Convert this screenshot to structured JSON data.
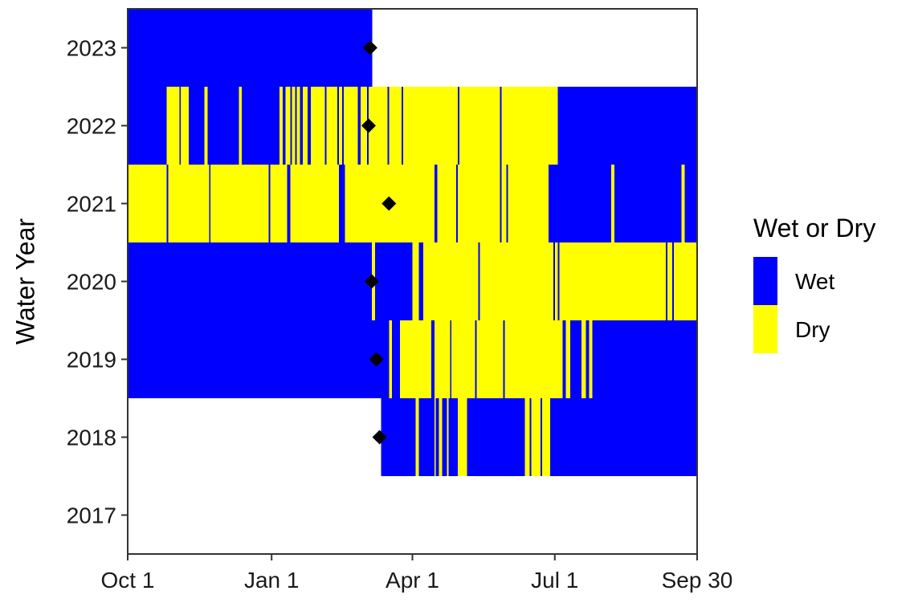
{
  "chart_data": {
    "type": "heatmap",
    "title": "",
    "xlabel": "",
    "ylabel": "Water Year",
    "x_ticks": [
      "Oct 1",
      "Jan 1",
      "Apr 1",
      "Jul 1",
      "Sep 30"
    ],
    "x_tick_days": [
      0,
      92,
      182,
      273,
      364
    ],
    "x_range_days": [
      0,
      364
    ],
    "y_ticks": [
      "2017",
      "2018",
      "2019",
      "2020",
      "2021",
      "2022",
      "2023"
    ],
    "legend": {
      "title": "Wet or Dry",
      "placement": "right",
      "items": [
        {
          "label": "Wet",
          "color": "#0000ff"
        },
        {
          "label": "Dry",
          "color": "#ffff00"
        }
      ]
    },
    "colors": {
      "Wet": "#0000ff",
      "Dry": "#ffff00",
      "marker": "#000000"
    },
    "grid": false,
    "rows": [
      {
        "year": "2018",
        "segments": [
          {
            "start": 162,
            "end": 184,
            "state": "Wet"
          },
          {
            "start": 184,
            "end": 186,
            "state": "Dry"
          },
          {
            "start": 186,
            "end": 196,
            "state": "Wet"
          },
          {
            "start": 196,
            "end": 197,
            "state": "Dry"
          },
          {
            "start": 197,
            "end": 199,
            "state": "Wet"
          },
          {
            "start": 199,
            "end": 201,
            "state": "Dry"
          },
          {
            "start": 201,
            "end": 204,
            "state": "Wet"
          },
          {
            "start": 204,
            "end": 205,
            "state": "Dry"
          },
          {
            "start": 205,
            "end": 211,
            "state": "Wet"
          },
          {
            "start": 211,
            "end": 217,
            "state": "Dry"
          },
          {
            "start": 217,
            "end": 254,
            "state": "Wet"
          },
          {
            "start": 254,
            "end": 257,
            "state": "Dry"
          },
          {
            "start": 257,
            "end": 258,
            "state": "Wet"
          },
          {
            "start": 258,
            "end": 264,
            "state": "Dry"
          },
          {
            "start": 264,
            "end": 265,
            "state": "Wet"
          },
          {
            "start": 265,
            "end": 270,
            "state": "Dry"
          },
          {
            "start": 270,
            "end": 364,
            "state": "Wet"
          }
        ],
        "marker_day": 161
      },
      {
        "year": "2019",
        "segments": [
          {
            "start": 0,
            "end": 167,
            "state": "Wet"
          },
          {
            "start": 167,
            "end": 169,
            "state": "Dry"
          },
          {
            "start": 169,
            "end": 174,
            "state": "Wet"
          },
          {
            "start": 174,
            "end": 194,
            "state": "Dry"
          },
          {
            "start": 194,
            "end": 196,
            "state": "Wet"
          },
          {
            "start": 196,
            "end": 206,
            "state": "Dry"
          },
          {
            "start": 206,
            "end": 207,
            "state": "Wet"
          },
          {
            "start": 207,
            "end": 222,
            "state": "Dry"
          },
          {
            "start": 222,
            "end": 223,
            "state": "Wet"
          },
          {
            "start": 223,
            "end": 240,
            "state": "Dry"
          },
          {
            "start": 240,
            "end": 241,
            "state": "Wet"
          },
          {
            "start": 241,
            "end": 278,
            "state": "Dry"
          },
          {
            "start": 278,
            "end": 280,
            "state": "Wet"
          },
          {
            "start": 280,
            "end": 283,
            "state": "Dry"
          },
          {
            "start": 283,
            "end": 290,
            "state": "Wet"
          },
          {
            "start": 290,
            "end": 293,
            "state": "Dry"
          },
          {
            "start": 293,
            "end": 295,
            "state": "Wet"
          },
          {
            "start": 295,
            "end": 297,
            "state": "Dry"
          },
          {
            "start": 297,
            "end": 364,
            "state": "Wet"
          }
        ],
        "marker_day": 159
      },
      {
        "year": "2020",
        "segments": [
          {
            "start": 0,
            "end": 156,
            "state": "Wet"
          },
          {
            "start": 156,
            "end": 158,
            "state": "Dry"
          },
          {
            "start": 158,
            "end": 182,
            "state": "Wet"
          },
          {
            "start": 182,
            "end": 186,
            "state": "Dry"
          },
          {
            "start": 186,
            "end": 189,
            "state": "Wet"
          },
          {
            "start": 189,
            "end": 224,
            "state": "Dry"
          },
          {
            "start": 224,
            "end": 225,
            "state": "Wet"
          },
          {
            "start": 225,
            "end": 272,
            "state": "Dry"
          },
          {
            "start": 272,
            "end": 273,
            "state": "Wet"
          },
          {
            "start": 273,
            "end": 275,
            "state": "Dry"
          },
          {
            "start": 275,
            "end": 276,
            "state": "Wet"
          },
          {
            "start": 276,
            "end": 344,
            "state": "Dry"
          },
          {
            "start": 344,
            "end": 345,
            "state": "Wet"
          },
          {
            "start": 345,
            "end": 348,
            "state": "Dry"
          },
          {
            "start": 348,
            "end": 349,
            "state": "Wet"
          },
          {
            "start": 349,
            "end": 364,
            "state": "Dry"
          }
        ],
        "marker_day": 156
      },
      {
        "year": "2021",
        "segments": [
          {
            "start": 0,
            "end": 25,
            "state": "Dry"
          },
          {
            "start": 25,
            "end": 26,
            "state": "Wet"
          },
          {
            "start": 26,
            "end": 52,
            "state": "Dry"
          },
          {
            "start": 52,
            "end": 53,
            "state": "Wet"
          },
          {
            "start": 53,
            "end": 90,
            "state": "Dry"
          },
          {
            "start": 90,
            "end": 91,
            "state": "Wet"
          },
          {
            "start": 91,
            "end": 102,
            "state": "Dry"
          },
          {
            "start": 102,
            "end": 104,
            "state": "Wet"
          },
          {
            "start": 104,
            "end": 135,
            "state": "Dry"
          },
          {
            "start": 135,
            "end": 139,
            "state": "Wet"
          },
          {
            "start": 139,
            "end": 196,
            "state": "Dry"
          },
          {
            "start": 196,
            "end": 198,
            "state": "Wet"
          },
          {
            "start": 198,
            "end": 210,
            "state": "Dry"
          },
          {
            "start": 210,
            "end": 211,
            "state": "Wet"
          },
          {
            "start": 211,
            "end": 238,
            "state": "Dry"
          },
          {
            "start": 238,
            "end": 239,
            "state": "Wet"
          },
          {
            "start": 239,
            "end": 242,
            "state": "Dry"
          },
          {
            "start": 242,
            "end": 243,
            "state": "Wet"
          },
          {
            "start": 243,
            "end": 269,
            "state": "Dry"
          },
          {
            "start": 269,
            "end": 309,
            "state": "Wet"
          },
          {
            "start": 309,
            "end": 311,
            "state": "Dry"
          },
          {
            "start": 311,
            "end": 354,
            "state": "Wet"
          },
          {
            "start": 354,
            "end": 356,
            "state": "Dry"
          },
          {
            "start": 356,
            "end": 364,
            "state": "Wet"
          }
        ],
        "marker_day": 167
      },
      {
        "year": "2022",
        "segments": [
          {
            "start": 0,
            "end": 25,
            "state": "Wet"
          },
          {
            "start": 25,
            "end": 33,
            "state": "Dry"
          },
          {
            "start": 33,
            "end": 34,
            "state": "Wet"
          },
          {
            "start": 34,
            "end": 39,
            "state": "Dry"
          },
          {
            "start": 39,
            "end": 49,
            "state": "Wet"
          },
          {
            "start": 49,
            "end": 51,
            "state": "Dry"
          },
          {
            "start": 51,
            "end": 71,
            "state": "Wet"
          },
          {
            "start": 71,
            "end": 73,
            "state": "Dry"
          },
          {
            "start": 73,
            "end": 97,
            "state": "Wet"
          },
          {
            "start": 97,
            "end": 99,
            "state": "Dry"
          },
          {
            "start": 99,
            "end": 101,
            "state": "Wet"
          },
          {
            "start": 101,
            "end": 104,
            "state": "Dry"
          },
          {
            "start": 104,
            "end": 105,
            "state": "Wet"
          },
          {
            "start": 105,
            "end": 107,
            "state": "Dry"
          },
          {
            "start": 107,
            "end": 108,
            "state": "Wet"
          },
          {
            "start": 108,
            "end": 110,
            "state": "Dry"
          },
          {
            "start": 110,
            "end": 112,
            "state": "Wet"
          },
          {
            "start": 112,
            "end": 115,
            "state": "Dry"
          },
          {
            "start": 115,
            "end": 117,
            "state": "Wet"
          },
          {
            "start": 117,
            "end": 126,
            "state": "Dry"
          },
          {
            "start": 126,
            "end": 127,
            "state": "Wet"
          },
          {
            "start": 127,
            "end": 134,
            "state": "Dry"
          },
          {
            "start": 134,
            "end": 135,
            "state": "Wet"
          },
          {
            "start": 135,
            "end": 137,
            "state": "Dry"
          },
          {
            "start": 137,
            "end": 138,
            "state": "Wet"
          },
          {
            "start": 138,
            "end": 147,
            "state": "Dry"
          },
          {
            "start": 147,
            "end": 149,
            "state": "Wet"
          },
          {
            "start": 149,
            "end": 153,
            "state": "Dry"
          },
          {
            "start": 153,
            "end": 154,
            "state": "Wet"
          },
          {
            "start": 154,
            "end": 166,
            "state": "Dry"
          },
          {
            "start": 166,
            "end": 167,
            "state": "Wet"
          },
          {
            "start": 167,
            "end": 175,
            "state": "Dry"
          },
          {
            "start": 175,
            "end": 176,
            "state": "Wet"
          },
          {
            "start": 176,
            "end": 211,
            "state": "Dry"
          },
          {
            "start": 211,
            "end": 212,
            "state": "Wet"
          },
          {
            "start": 212,
            "end": 238,
            "state": "Dry"
          },
          {
            "start": 238,
            "end": 239,
            "state": "Wet"
          },
          {
            "start": 239,
            "end": 275,
            "state": "Dry"
          },
          {
            "start": 275,
            "end": 364,
            "state": "Wet"
          }
        ],
        "marker_day": 154
      },
      {
        "year": "2023",
        "segments": [
          {
            "start": 0,
            "end": 156,
            "state": "Wet"
          }
        ],
        "marker_day": 155
      }
    ]
  }
}
